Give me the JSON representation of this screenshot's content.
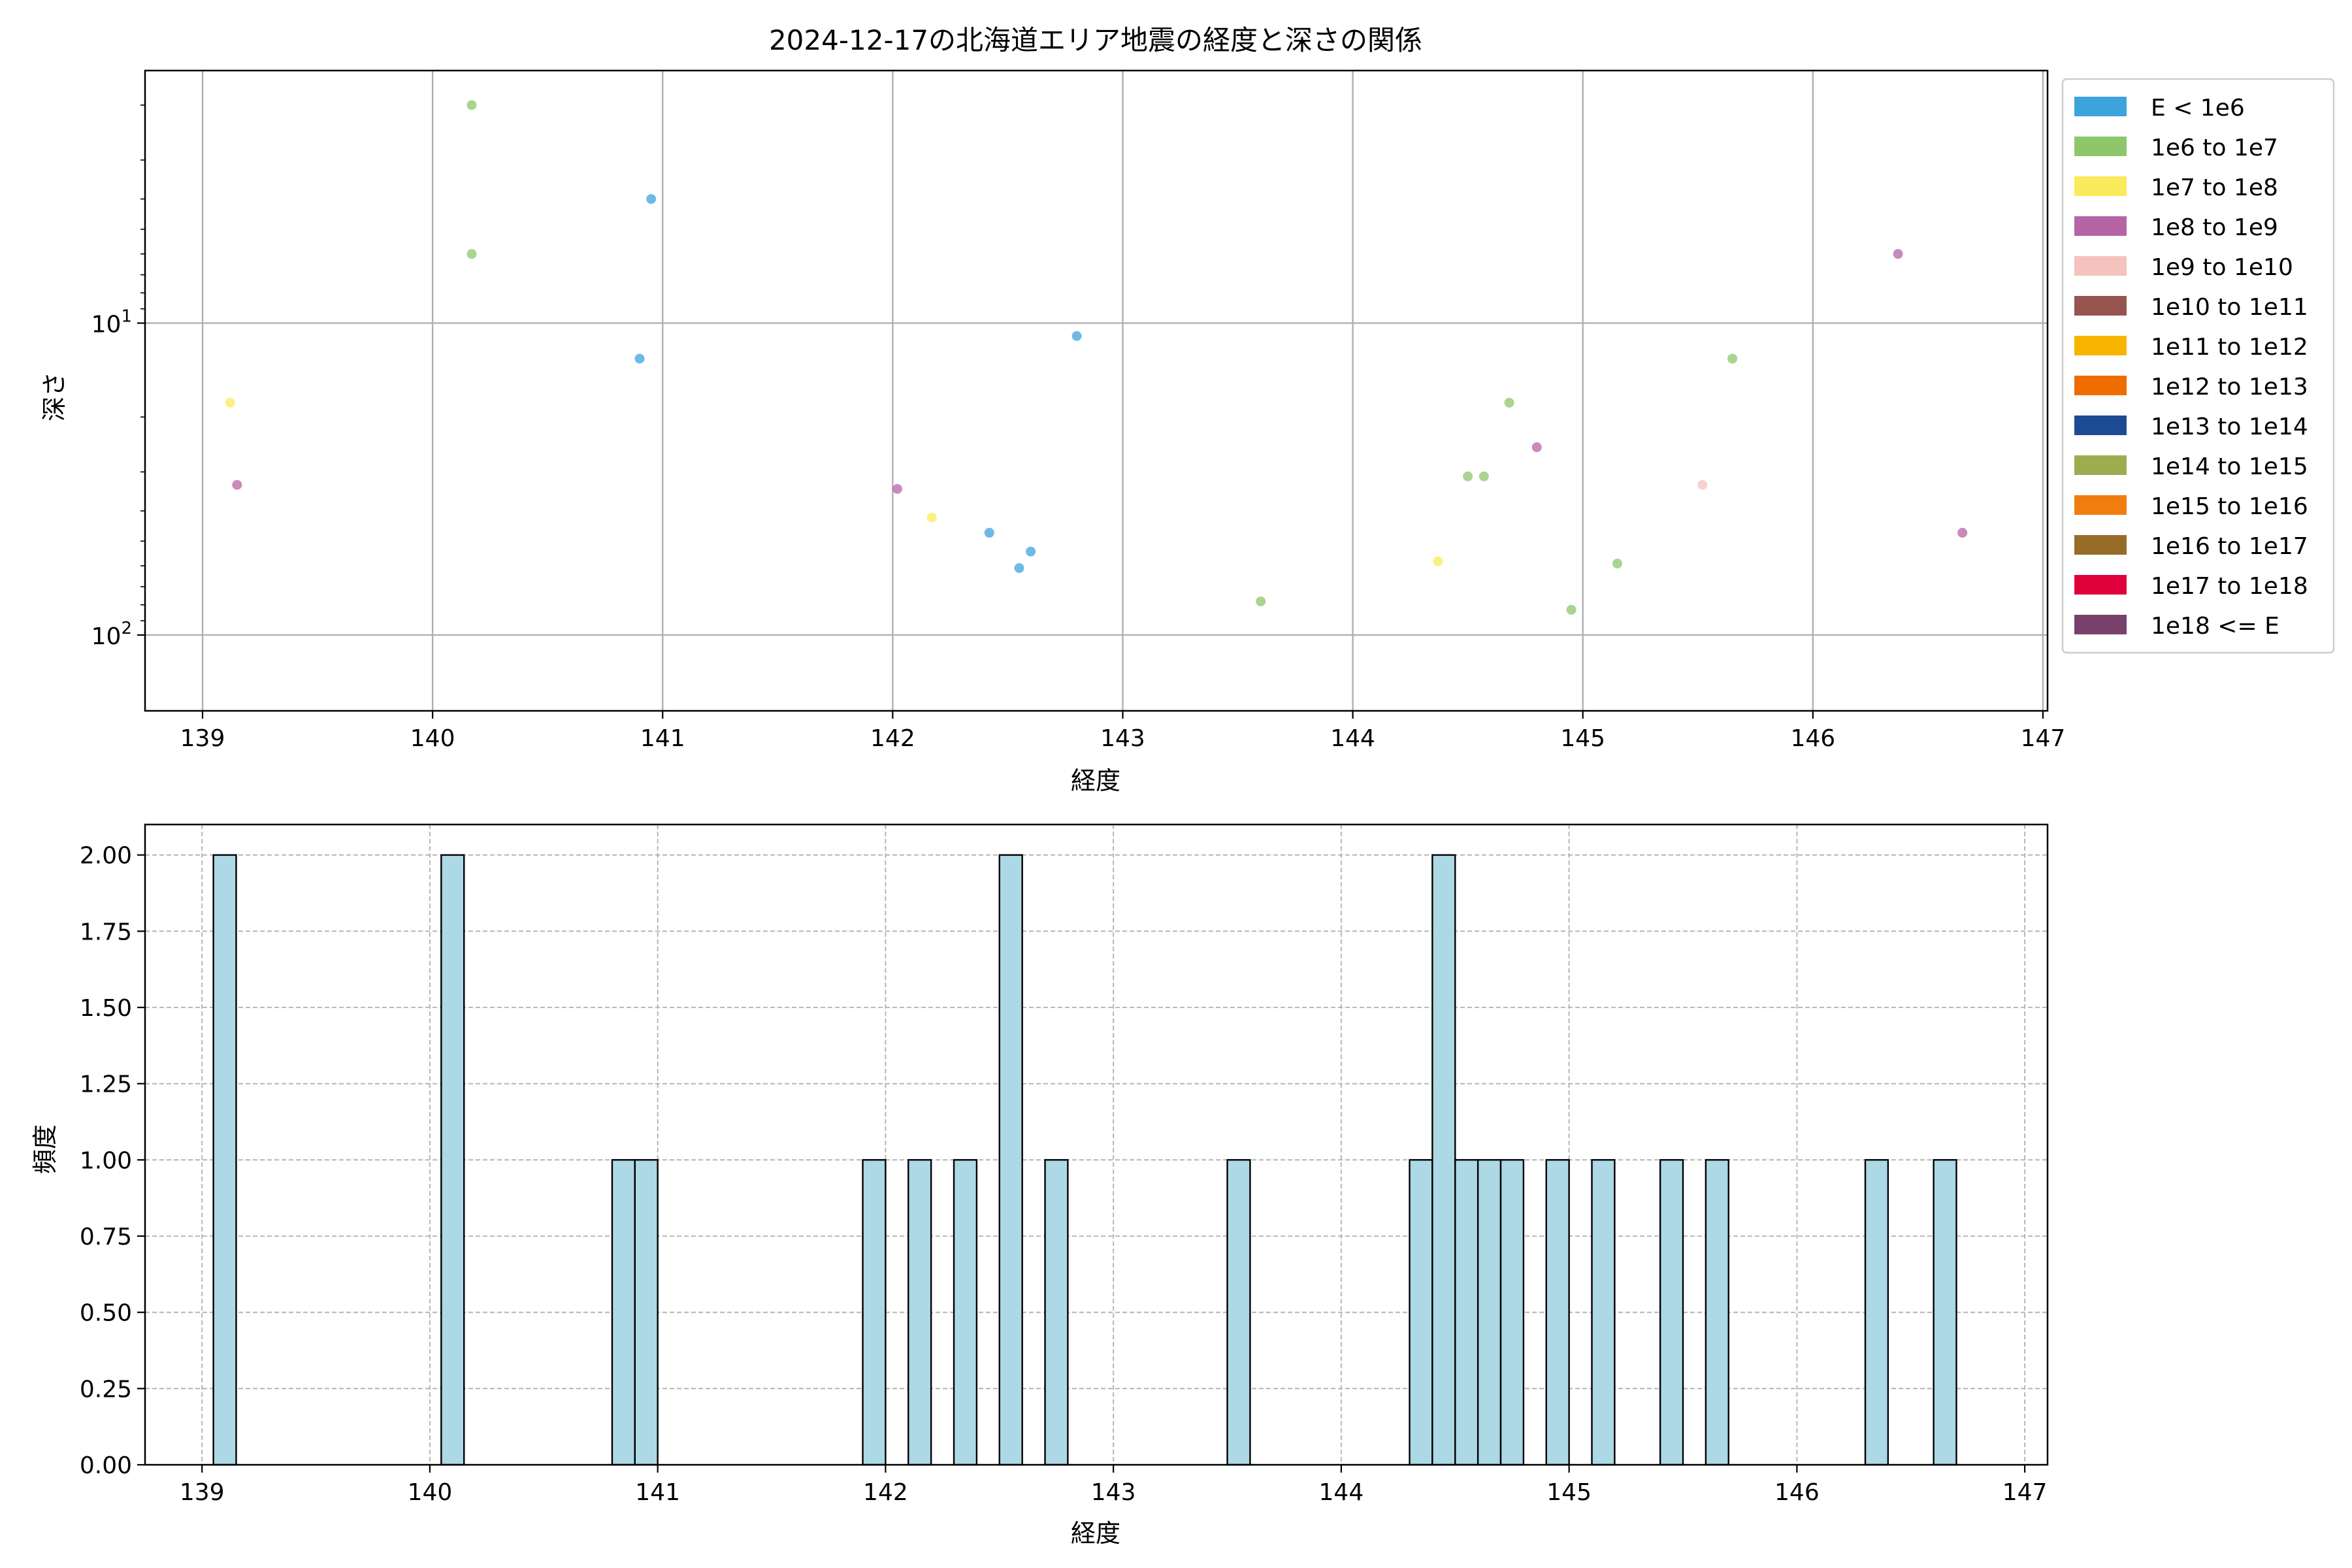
{
  "chart_data": [
    {
      "type": "scatter",
      "title": "2024-12-17の北海道エリア地震の経度と深さの関係",
      "xlabel": "経度",
      "ylabel": "深さ",
      "xlim": [
        138.75,
        147.02
      ],
      "ylim": [
        175,
        1.55
      ],
      "yscale": "log",
      "y_inverted": true,
      "x_ticks": [
        139,
        140,
        141,
        142,
        143,
        144,
        145,
        146,
        147
      ],
      "y_ticks": [
        {
          "value": 10,
          "label": "10^1"
        },
        {
          "value": 100,
          "label": "10^2"
        }
      ],
      "grid": true,
      "legend_position": "outside-right",
      "legend": [
        {
          "label": "E < 1e6",
          "color": "#3da3dc"
        },
        {
          "label": "1e6 to 1e7",
          "color": "#8ec76b"
        },
        {
          "label": "1e7 to 1e8",
          "color": "#fbea5b"
        },
        {
          "label": "1e8 to 1e9",
          "color": "#b564a5"
        },
        {
          "label": "1e9 to 1e10",
          "color": "#f5c2bd"
        },
        {
          "label": "1e10 to 1e11",
          "color": "#96544f"
        },
        {
          "label": "1e11 to 1e12",
          "color": "#f8b500"
        },
        {
          "label": "1e12 to 1e13",
          "color": "#ef6c00"
        },
        {
          "label": "1e13 to 1e14",
          "color": "#1c4a93"
        },
        {
          "label": "1e14 to 1e15",
          "color": "#9cad50"
        },
        {
          "label": "1e15 to 1e16",
          "color": "#ef7e0e"
        },
        {
          "label": "1e16 to 1e17",
          "color": "#966c28"
        },
        {
          "label": "1e17 to 1e18",
          "color": "#e0003c"
        },
        {
          "label": "1e18 <= E",
          "color": "#78406b"
        }
      ],
      "points": [
        {
          "x": 139.12,
          "y": 18,
          "class": "1e7 to 1e8"
        },
        {
          "x": 139.15,
          "y": 33,
          "class": "1e8 to 1e9"
        },
        {
          "x": 140.17,
          "y": 2,
          "class": "1e6 to 1e7"
        },
        {
          "x": 140.17,
          "y": 6,
          "class": "1e6 to 1e7"
        },
        {
          "x": 140.9,
          "y": 13,
          "class": "E < 1e6"
        },
        {
          "x": 140.95,
          "y": 4,
          "class": "E < 1e6"
        },
        {
          "x": 142.02,
          "y": 34,
          "class": "1e8 to 1e9"
        },
        {
          "x": 142.17,
          "y": 42,
          "class": "1e7 to 1e8"
        },
        {
          "x": 142.42,
          "y": 47,
          "class": "E < 1e6"
        },
        {
          "x": 142.55,
          "y": 61,
          "class": "E < 1e6"
        },
        {
          "x": 142.6,
          "y": 54,
          "class": "E < 1e6"
        },
        {
          "x": 142.8,
          "y": 11,
          "class": "E < 1e6"
        },
        {
          "x": 143.6,
          "y": 78,
          "class": "1e6 to 1e7"
        },
        {
          "x": 144.37,
          "y": 58,
          "class": "1e7 to 1e8"
        },
        {
          "x": 144.5,
          "y": 31,
          "class": "1e6 to 1e7"
        },
        {
          "x": 144.57,
          "y": 31,
          "class": "1e6 to 1e7"
        },
        {
          "x": 144.68,
          "y": 18,
          "class": "1e6 to 1e7"
        },
        {
          "x": 144.8,
          "y": 25,
          "class": "1e8 to 1e9"
        },
        {
          "x": 144.95,
          "y": 83,
          "class": "1e6 to 1e7"
        },
        {
          "x": 145.15,
          "y": 59,
          "class": "1e6 to 1e7"
        },
        {
          "x": 145.52,
          "y": 33,
          "class": "1e9 to 1e10"
        },
        {
          "x": 145.65,
          "y": 13,
          "class": "1e6 to 1e7"
        },
        {
          "x": 146.37,
          "y": 6,
          "class": "1e8 to 1e9"
        },
        {
          "x": 146.65,
          "y": 47,
          "class": "1e8 to 1e9"
        }
      ]
    },
    {
      "type": "bar",
      "xlabel": "経度",
      "ylabel": "頻度",
      "xlim": [
        138.75,
        147.1
      ],
      "ylim": [
        0,
        2.1
      ],
      "x_ticks": [
        139,
        140,
        141,
        142,
        143,
        144,
        145,
        146,
        147
      ],
      "y_ticks": [
        "0.00",
        "0.25",
        "0.50",
        "0.75",
        "1.00",
        "1.25",
        "1.50",
        "1.75",
        "2.00"
      ],
      "grid": true,
      "bar_color": "#add8e6",
      "bin_width": 0.1,
      "bins": [
        {
          "x": 139.1,
          "count": 2
        },
        {
          "x": 140.1,
          "count": 2
        },
        {
          "x": 140.85,
          "count": 1
        },
        {
          "x": 140.95,
          "count": 1
        },
        {
          "x": 141.95,
          "count": 1
        },
        {
          "x": 142.15,
          "count": 1
        },
        {
          "x": 142.35,
          "count": 1
        },
        {
          "x": 142.55,
          "count": 2
        },
        {
          "x": 142.75,
          "count": 1
        },
        {
          "x": 143.55,
          "count": 1
        },
        {
          "x": 144.35,
          "count": 1
        },
        {
          "x": 144.45,
          "count": 2
        },
        {
          "x": 144.55,
          "count": 1
        },
        {
          "x": 144.65,
          "count": 1
        },
        {
          "x": 144.75,
          "count": 1
        },
        {
          "x": 144.95,
          "count": 1
        },
        {
          "x": 145.15,
          "count": 1
        },
        {
          "x": 145.45,
          "count": 1
        },
        {
          "x": 145.65,
          "count": 1
        },
        {
          "x": 146.35,
          "count": 1
        },
        {
          "x": 146.65,
          "count": 1
        }
      ]
    }
  ]
}
